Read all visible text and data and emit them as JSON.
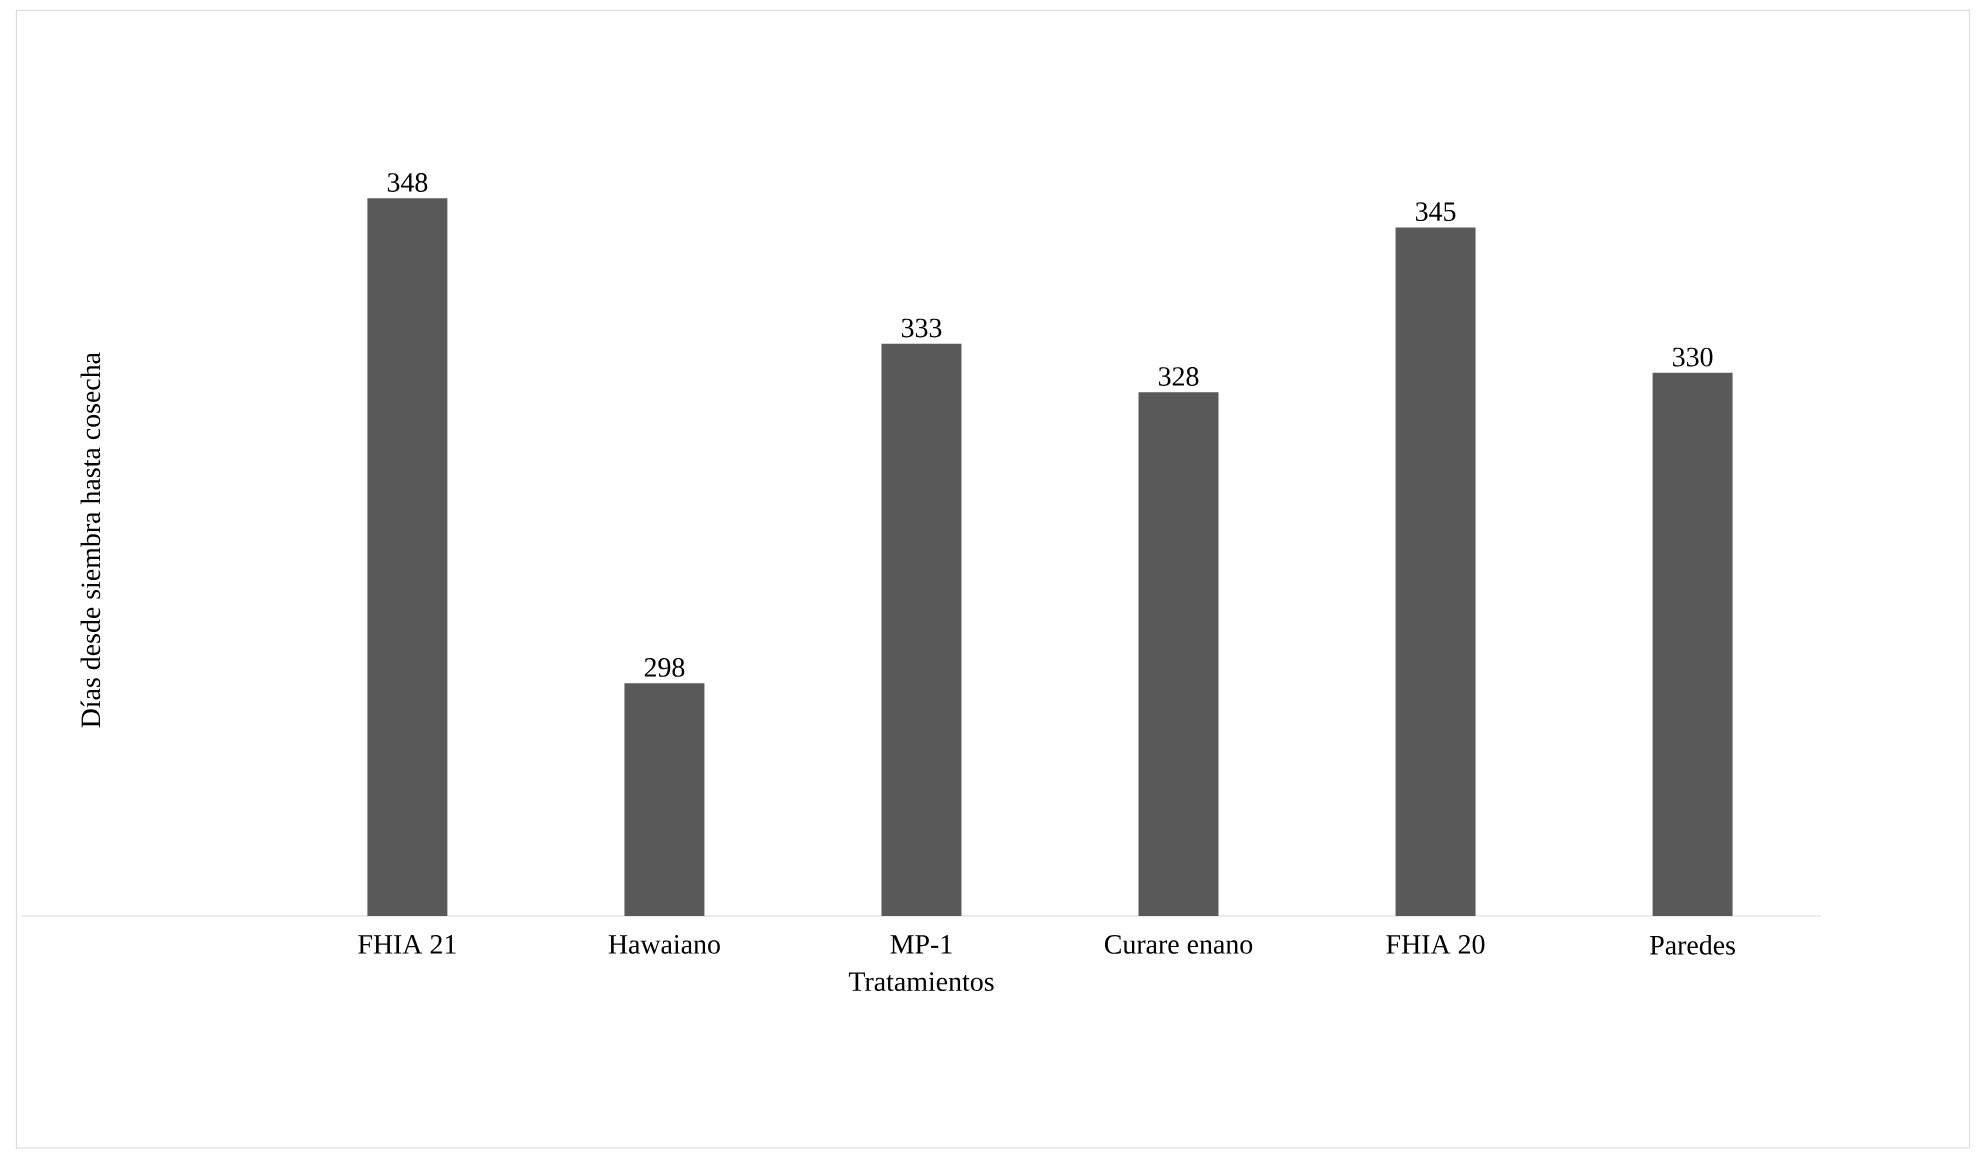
{
  "chart_data": {
    "type": "bar",
    "xlabel": "Tratamientos",
    "ylabel": "Días desde siembra hasta cosecha",
    "categories": [
      null,
      "FHIA 21",
      "Hawaiano",
      "MP-1",
      "Curare enano",
      "FHIA 20",
      "Paredes"
    ],
    "values": [
      null,
      348,
      298,
      333,
      328,
      345,
      330
    ],
    "color": "#595959",
    "ylim": [
      274,
      348
    ],
    "data_labels": true
  }
}
